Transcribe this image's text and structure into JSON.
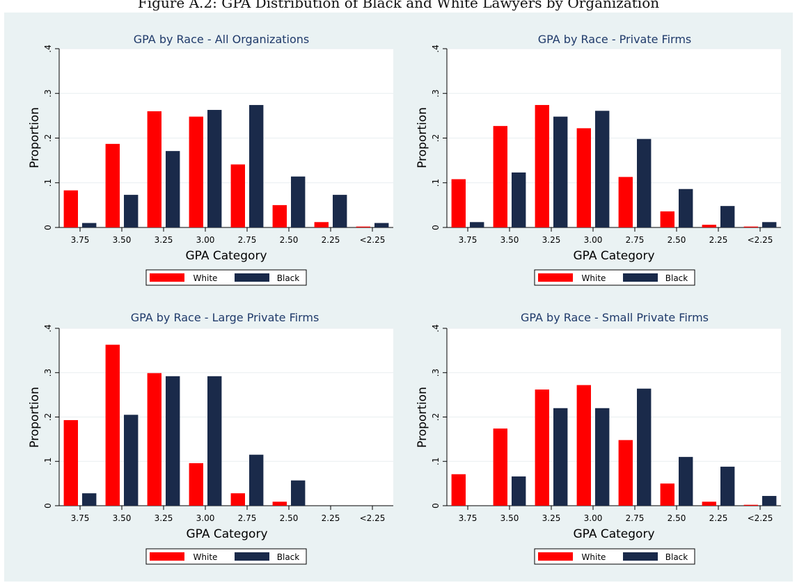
{
  "figure_title": "Figure A.2: GPA Distribution of Black and White Lawyers by Organization",
  "colors": {
    "white": "#ff0000",
    "black": "#1a2a4a",
    "plot_bg": "#ffffff",
    "outer_bg": "#eaf2f3",
    "title": "#1f3a6a",
    "grid": "#e8eef0"
  },
  "chart_data": [
    {
      "type": "bar",
      "title": "GPA by Race - All Organizations",
      "xlabel": "GPA Category",
      "ylabel": "Proportion",
      "categories": [
        "3.75",
        "3.50",
        "3.25",
        "3.00",
        "2.75",
        "2.50",
        "2.25",
        "<2.25"
      ],
      "yticks": [
        "0",
        ".1",
        ".2",
        ".3",
        ".4"
      ],
      "ylim": [
        0,
        0.4
      ],
      "grid": true,
      "legend_position": "bottom",
      "series": [
        {
          "name": "White",
          "values": [
            0.083,
            0.187,
            0.26,
            0.248,
            0.141,
            0.05,
            0.012,
            0.002
          ]
        },
        {
          "name": "Black",
          "values": [
            0.01,
            0.073,
            0.171,
            0.263,
            0.274,
            0.114,
            0.073,
            0.01
          ]
        }
      ]
    },
    {
      "type": "bar",
      "title": "GPA by Race - Private Firms",
      "xlabel": "GPA Category",
      "ylabel": "Proportion",
      "categories": [
        "3.75",
        "3.50",
        "3.25",
        "3.00",
        "2.75",
        "2.50",
        "2.25",
        "<2.25"
      ],
      "yticks": [
        "0",
        ".1",
        ".2",
        ".3",
        ".4"
      ],
      "ylim": [
        0,
        0.4
      ],
      "grid": true,
      "legend_position": "bottom",
      "series": [
        {
          "name": "White",
          "values": [
            0.108,
            0.227,
            0.274,
            0.222,
            0.113,
            0.036,
            0.006,
            0.002
          ]
        },
        {
          "name": "Black",
          "values": [
            0.012,
            0.123,
            0.248,
            0.261,
            0.198,
            0.086,
            0.048,
            0.012
          ]
        }
      ]
    },
    {
      "type": "bar",
      "title": "GPA by Race - Large Private Firms",
      "xlabel": "GPA Category",
      "ylabel": "Proportion",
      "categories": [
        "3.75",
        "3.50",
        "3.25",
        "3.00",
        "2.75",
        "2.50",
        "2.25",
        "<2.25"
      ],
      "yticks": [
        "0",
        ".1",
        ".2",
        ".3",
        ".4"
      ],
      "ylim": [
        0,
        0.4
      ],
      "grid": true,
      "legend_position": "bottom",
      "series": [
        {
          "name": "White",
          "values": [
            0.193,
            0.363,
            0.299,
            0.096,
            0.028,
            0.009,
            0,
            0
          ]
        },
        {
          "name": "Black",
          "values": [
            0.028,
            0.205,
            0.292,
            0.292,
            0.115,
            0.057,
            0,
            0
          ]
        }
      ]
    },
    {
      "type": "bar",
      "title": "GPA by Race - Small Private Firms",
      "xlabel": "GPA Category",
      "ylabel": "Proportion",
      "categories": [
        "3.75",
        "3.50",
        "3.25",
        "3.00",
        "2.75",
        "2.50",
        "2.25",
        "<2.25"
      ],
      "yticks": [
        "0",
        ".1",
        ".2",
        ".3",
        ".4"
      ],
      "ylim": [
        0,
        0.4
      ],
      "grid": true,
      "legend_position": "bottom",
      "series": [
        {
          "name": "White",
          "values": [
            0.071,
            0.174,
            0.262,
            0.272,
            0.148,
            0.05,
            0.009,
            0.002
          ]
        },
        {
          "name": "Black",
          "values": [
            0,
            0.066,
            0.22,
            0.22,
            0.264,
            0.11,
            0.088,
            0.022
          ]
        }
      ]
    }
  ]
}
